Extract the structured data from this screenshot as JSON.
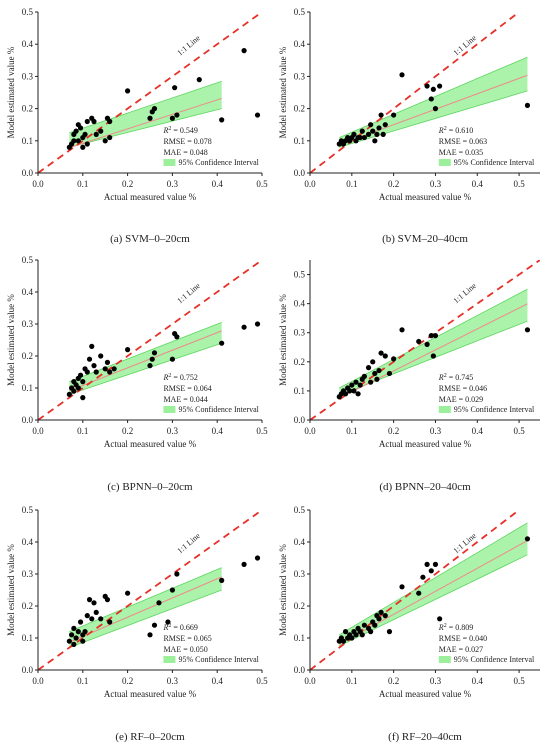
{
  "figure": {
    "axis_xlabel": "Actual measured value %",
    "axis_ylabel": "Model estimated value %",
    "oneone_label": "1:1 Line",
    "ci_label": "95% Confidence Interval",
    "colors": {
      "oneone": "#e63028",
      "ci_band": "#9cf09c",
      "fit": "#f08a8a",
      "ci_edge": "#5dd65d",
      "points": "#000000"
    }
  },
  "chart_data": [
    {
      "type": "scatter",
      "caption": "(a) SVM–0–20cm",
      "xlim": [
        0,
        0.5
      ],
      "ylim": [
        0,
        0.5
      ],
      "xticks": [
        "0.0",
        "0.1",
        "0.2",
        "0.3",
        "0.4",
        "0.5"
      ],
      "yticks": [
        "0.0",
        "0.1",
        "0.2",
        "0.3",
        "0.4",
        "0.5"
      ],
      "stats": {
        "r2": "= 0.549",
        "rmse": "RMSE = 0.078",
        "mae": "MAE = 0.048"
      },
      "fit": {
        "x": [
          0.07,
          0.41
        ],
        "slope": 0.45,
        "intercept": 0.047,
        "ci_low": [
          0.08,
          0.2
        ],
        "ci_high": [
          0.125,
          0.285
        ]
      },
      "points": [
        [
          0.07,
          0.08
        ],
        [
          0.075,
          0.09
        ],
        [
          0.08,
          0.1
        ],
        [
          0.08,
          0.12
        ],
        [
          0.085,
          0.13
        ],
        [
          0.09,
          0.1
        ],
        [
          0.09,
          0.15
        ],
        [
          0.095,
          0.14
        ],
        [
          0.1,
          0.08
        ],
        [
          0.1,
          0.11
        ],
        [
          0.105,
          0.12
        ],
        [
          0.11,
          0.16
        ],
        [
          0.11,
          0.09
        ],
        [
          0.12,
          0.17
        ],
        [
          0.125,
          0.16
        ],
        [
          0.13,
          0.12
        ],
        [
          0.14,
          0.13
        ],
        [
          0.15,
          0.1
        ],
        [
          0.155,
          0.17
        ],
        [
          0.16,
          0.11
        ],
        [
          0.16,
          0.16
        ],
        [
          0.2,
          0.255
        ],
        [
          0.25,
          0.17
        ],
        [
          0.255,
          0.19
        ],
        [
          0.26,
          0.2
        ],
        [
          0.3,
          0.17
        ],
        [
          0.305,
          0.265
        ],
        [
          0.31,
          0.18
        ],
        [
          0.36,
          0.29
        ],
        [
          0.41,
          0.165
        ],
        [
          0.46,
          0.38
        ],
        [
          0.49,
          0.18
        ]
      ]
    },
    {
      "type": "scatter",
      "caption": "(b) SVM–20–40cm",
      "xlim": [
        0,
        0.55
      ],
      "ylim": [
        0,
        0.5
      ],
      "xticks": [
        "0.0",
        "0.1",
        "0.2",
        "0.3",
        "0.4",
        "0.5"
      ],
      "yticks": [
        "0.0",
        "0.1",
        "0.2",
        "0.3",
        "0.4",
        "0.5"
      ],
      "stats": {
        "r2": "= 0.610",
        "rmse": "RMSE = 0.063",
        "mae": "MAE = 0.035"
      },
      "fit": {
        "x": [
          0.07,
          0.52
        ],
        "slope": 0.48,
        "intercept": 0.054,
        "ci_low": [
          0.08,
          0.255
        ],
        "ci_high": [
          0.11,
          0.36
        ]
      },
      "points": [
        [
          0.07,
          0.09
        ],
        [
          0.075,
          0.1
        ],
        [
          0.08,
          0.09
        ],
        [
          0.085,
          0.1
        ],
        [
          0.09,
          0.11
        ],
        [
          0.095,
          0.1
        ],
        [
          0.1,
          0.11
        ],
        [
          0.105,
          0.12
        ],
        [
          0.11,
          0.1
        ],
        [
          0.115,
          0.11
        ],
        [
          0.12,
          0.11
        ],
        [
          0.125,
          0.13
        ],
        [
          0.13,
          0.11
        ],
        [
          0.14,
          0.12
        ],
        [
          0.145,
          0.15
        ],
        [
          0.15,
          0.13
        ],
        [
          0.155,
          0.1
        ],
        [
          0.16,
          0.12
        ],
        [
          0.165,
          0.14
        ],
        [
          0.17,
          0.18
        ],
        [
          0.175,
          0.12
        ],
        [
          0.18,
          0.15
        ],
        [
          0.2,
          0.18
        ],
        [
          0.22,
          0.305
        ],
        [
          0.28,
          0.27
        ],
        [
          0.29,
          0.23
        ],
        [
          0.295,
          0.26
        ],
        [
          0.3,
          0.2
        ],
        [
          0.31,
          0.27
        ],
        [
          0.52,
          0.21
        ]
      ]
    },
    {
      "type": "scatter",
      "caption": "(c) BPNN–0–20cm",
      "xlim": [
        0,
        0.5
      ],
      "ylim": [
        0,
        0.5
      ],
      "xticks": [
        "0.0",
        "0.1",
        "0.2",
        "0.3",
        "0.4",
        "0.5"
      ],
      "yticks": [
        "0.0",
        "0.1",
        "0.2",
        "0.3",
        "0.4",
        "0.5"
      ],
      "stats": {
        "r2": "= 0.752",
        "rmse": "RMSE = 0.064",
        "mae": "MAE = 0.044"
      },
      "fit": {
        "x": [
          0.07,
          0.41
        ],
        "slope": 0.55,
        "intercept": 0.053,
        "ci_low": [
          0.08,
          0.24
        ],
        "ci_high": [
          0.12,
          0.305
        ]
      },
      "points": [
        [
          0.07,
          0.08
        ],
        [
          0.075,
          0.1
        ],
        [
          0.08,
          0.09
        ],
        [
          0.08,
          0.12
        ],
        [
          0.085,
          0.11
        ],
        [
          0.09,
          0.1
        ],
        [
          0.09,
          0.13
        ],
        [
          0.095,
          0.14
        ],
        [
          0.1,
          0.07
        ],
        [
          0.1,
          0.12
        ],
        [
          0.105,
          0.16
        ],
        [
          0.11,
          0.15
        ],
        [
          0.115,
          0.19
        ],
        [
          0.12,
          0.23
        ],
        [
          0.125,
          0.17
        ],
        [
          0.13,
          0.15
        ],
        [
          0.14,
          0.2
        ],
        [
          0.15,
          0.16
        ],
        [
          0.155,
          0.18
        ],
        [
          0.16,
          0.15
        ],
        [
          0.17,
          0.16
        ],
        [
          0.2,
          0.22
        ],
        [
          0.25,
          0.17
        ],
        [
          0.255,
          0.19
        ],
        [
          0.26,
          0.21
        ],
        [
          0.3,
          0.19
        ],
        [
          0.305,
          0.27
        ],
        [
          0.31,
          0.26
        ],
        [
          0.41,
          0.24
        ],
        [
          0.46,
          0.29
        ],
        [
          0.49,
          0.3
        ]
      ]
    },
    {
      "type": "scatter",
      "caption": "(d) BPNN–20–40cm",
      "xlim": [
        0,
        0.55
      ],
      "ylim": [
        0,
        0.55
      ],
      "xticks": [
        "0.0",
        "0.1",
        "0.2",
        "0.3",
        "0.4",
        "0.5"
      ],
      "yticks": [
        "0.0",
        "0.1",
        "0.2",
        "0.3",
        "0.4",
        "0.5"
      ],
      "stats": {
        "r2": "= 0.745",
        "rmse": "RMSE = 0.046",
        "mae": "MAE = 0.029"
      },
      "fit": {
        "x": [
          0.07,
          0.52
        ],
        "slope": 0.72,
        "intercept": 0.025,
        "ci_low": [
          0.085,
          0.34
        ],
        "ci_high": [
          0.11,
          0.45
        ]
      },
      "points": [
        [
          0.07,
          0.08
        ],
        [
          0.075,
          0.09
        ],
        [
          0.08,
          0.1
        ],
        [
          0.085,
          0.09
        ],
        [
          0.09,
          0.11
        ],
        [
          0.095,
          0.1
        ],
        [
          0.1,
          0.12
        ],
        [
          0.105,
          0.1
        ],
        [
          0.11,
          0.13
        ],
        [
          0.115,
          0.09
        ],
        [
          0.12,
          0.12
        ],
        [
          0.125,
          0.14
        ],
        [
          0.13,
          0.15
        ],
        [
          0.14,
          0.18
        ],
        [
          0.145,
          0.13
        ],
        [
          0.15,
          0.2
        ],
        [
          0.155,
          0.16
        ],
        [
          0.16,
          0.14
        ],
        [
          0.165,
          0.17
        ],
        [
          0.17,
          0.23
        ],
        [
          0.18,
          0.22
        ],
        [
          0.19,
          0.16
        ],
        [
          0.2,
          0.21
        ],
        [
          0.22,
          0.31
        ],
        [
          0.26,
          0.27
        ],
        [
          0.28,
          0.26
        ],
        [
          0.29,
          0.29
        ],
        [
          0.295,
          0.22
        ],
        [
          0.3,
          0.29
        ],
        [
          0.52,
          0.31
        ]
      ]
    },
    {
      "type": "scatter",
      "caption": "(e) RF–0–20cm",
      "xlim": [
        0,
        0.5
      ],
      "ylim": [
        0,
        0.5
      ],
      "xticks": [
        "0.0",
        "0.1",
        "0.2",
        "0.3",
        "0.4",
        "0.5"
      ],
      "yticks": [
        "0.0",
        "0.1",
        "0.2",
        "0.3",
        "0.4",
        "0.5"
      ],
      "stats": {
        "r2": "= 0.669",
        "rmse": "RMSE = 0.065",
        "mae": "MAE = 0.050"
      },
      "fit": {
        "x": [
          0.07,
          0.41
        ],
        "slope": 0.6,
        "intercept": 0.045,
        "ci_low": [
          0.07,
          0.25
        ],
        "ci_high": [
          0.12,
          0.32
        ]
      },
      "points": [
        [
          0.07,
          0.09
        ],
        [
          0.075,
          0.11
        ],
        [
          0.08,
          0.08
        ],
        [
          0.08,
          0.13
        ],
        [
          0.085,
          0.1
        ],
        [
          0.09,
          0.12
        ],
        [
          0.095,
          0.15
        ],
        [
          0.1,
          0.09
        ],
        [
          0.1,
          0.11
        ],
        [
          0.105,
          0.12
        ],
        [
          0.11,
          0.17
        ],
        [
          0.115,
          0.22
        ],
        [
          0.12,
          0.16
        ],
        [
          0.125,
          0.21
        ],
        [
          0.13,
          0.18
        ],
        [
          0.14,
          0.16
        ],
        [
          0.15,
          0.23
        ],
        [
          0.155,
          0.22
        ],
        [
          0.16,
          0.15
        ],
        [
          0.2,
          0.24
        ],
        [
          0.25,
          0.11
        ],
        [
          0.26,
          0.14
        ],
        [
          0.27,
          0.21
        ],
        [
          0.29,
          0.15
        ],
        [
          0.3,
          0.25
        ],
        [
          0.31,
          0.3
        ],
        [
          0.41,
          0.28
        ],
        [
          0.46,
          0.33
        ],
        [
          0.49,
          0.35
        ]
      ]
    },
    {
      "type": "scatter",
      "caption": "(f) RF–20–40cm",
      "xlim": [
        0,
        0.55
      ],
      "ylim": [
        0,
        0.5
      ],
      "xticks": [
        "0.0",
        "0.1",
        "0.2",
        "0.3",
        "0.4",
        "0.5"
      ],
      "yticks": [
        "0.0",
        "0.1",
        "0.2",
        "0.3",
        "0.4",
        "0.5"
      ],
      "stats": {
        "r2": "= 0.809",
        "rmse": "RMSE = 0.040",
        "mae": "MAE = 0.027"
      },
      "fit": {
        "x": [
          0.07,
          0.52
        ],
        "slope": 0.72,
        "intercept": 0.03,
        "ci_low": [
          0.075,
          0.36
        ],
        "ci_high": [
          0.11,
          0.46
        ]
      },
      "points": [
        [
          0.07,
          0.09
        ],
        [
          0.075,
          0.1
        ],
        [
          0.08,
          0.09
        ],
        [
          0.085,
          0.12
        ],
        [
          0.09,
          0.1
        ],
        [
          0.095,
          0.11
        ],
        [
          0.1,
          0.1
        ],
        [
          0.105,
          0.12
        ],
        [
          0.11,
          0.11
        ],
        [
          0.115,
          0.13
        ],
        [
          0.12,
          0.12
        ],
        [
          0.125,
          0.11
        ],
        [
          0.13,
          0.14
        ],
        [
          0.14,
          0.13
        ],
        [
          0.145,
          0.12
        ],
        [
          0.15,
          0.15
        ],
        [
          0.155,
          0.14
        ],
        [
          0.16,
          0.17
        ],
        [
          0.165,
          0.16
        ],
        [
          0.17,
          0.18
        ],
        [
          0.18,
          0.17
        ],
        [
          0.19,
          0.12
        ],
        [
          0.22,
          0.26
        ],
        [
          0.26,
          0.24
        ],
        [
          0.27,
          0.29
        ],
        [
          0.28,
          0.33
        ],
        [
          0.29,
          0.31
        ],
        [
          0.3,
          0.33
        ],
        [
          0.31,
          0.16
        ],
        [
          0.52,
          0.41
        ]
      ]
    }
  ]
}
